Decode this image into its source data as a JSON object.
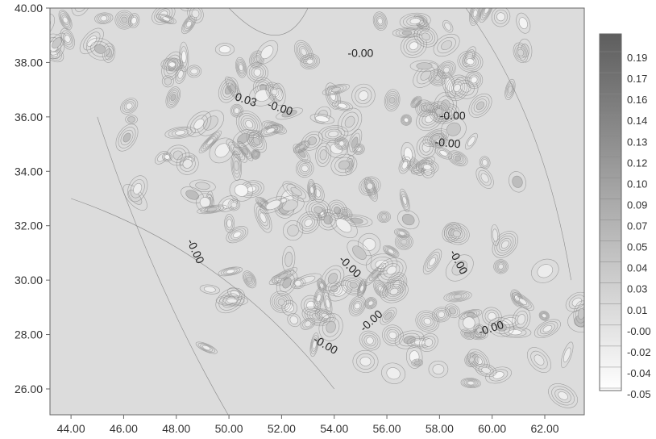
{
  "chart_data": {
    "type": "heatmap",
    "subtype": "contour map",
    "title": "",
    "xlabel": "",
    "ylabel": "",
    "xlim": [
      43.2,
      63.5
    ],
    "ylim": [
      25.05,
      40.0
    ],
    "x_ticks": [
      "44.00",
      "46.00",
      "48.00",
      "50.00",
      "52.00",
      "54.00",
      "56.00",
      "58.00",
      "60.00",
      "62.00"
    ],
    "x_tick_values": [
      44,
      46,
      48,
      50,
      52,
      54,
      56,
      58,
      60,
      62
    ],
    "y_ticks": [
      "26.00",
      "28.00",
      "30.00",
      "32.00",
      "34.00",
      "36.00",
      "38.00",
      "40.00"
    ],
    "y_tick_values": [
      26,
      28,
      30,
      32,
      34,
      36,
      38,
      40
    ],
    "colorbar": {
      "labels": [
        "0.19",
        "0.17",
        "0.16",
        "0.14",
        "0.13",
        "0.12",
        "0.10",
        "0.09",
        "0.07",
        "0.05",
        "0.04",
        "0.03",
        "0.01",
        "-0.00",
        "-0.02",
        "-0.04",
        "-0.05"
      ],
      "min": -0.05,
      "max": 0.2,
      "colors": {
        "low": "#ffffff",
        "high": "#5e5e5e"
      }
    },
    "contour_labels": [
      {
        "text": "-0.00",
        "x": 55.0,
        "y": 38.2,
        "angle": 0
      },
      {
        "text": "0.03",
        "x": 50.6,
        "y": 36.5,
        "angle": 18
      },
      {
        "text": "-0.00",
        "x": 51.9,
        "y": 36.2,
        "angle": 18
      },
      {
        "text": "-0.00",
        "x": 58.5,
        "y": 35.9,
        "angle": 0
      },
      {
        "text": "-0.00",
        "x": 58.3,
        "y": 34.9,
        "angle": 5
      },
      {
        "text": "-0.00",
        "x": 48.6,
        "y": 31.0,
        "angle": 65
      },
      {
        "text": "-0.00",
        "x": 54.5,
        "y": 30.4,
        "angle": 45
      },
      {
        "text": "-0.00",
        "x": 58.6,
        "y": 30.6,
        "angle": 62
      },
      {
        "text": "-0.00",
        "x": 55.5,
        "y": 28.4,
        "angle": -42
      },
      {
        "text": "-0.00",
        "x": 60.0,
        "y": 28.1,
        "angle": -18
      },
      {
        "text": "-0.00",
        "x": 53.6,
        "y": 27.5,
        "angle": 30
      }
    ],
    "grid": false,
    "legend": "colorbar right"
  },
  "colors": {
    "field_base": "#dcdcdc",
    "contour_line": "#8a8a8a",
    "frame": "#666666"
  }
}
